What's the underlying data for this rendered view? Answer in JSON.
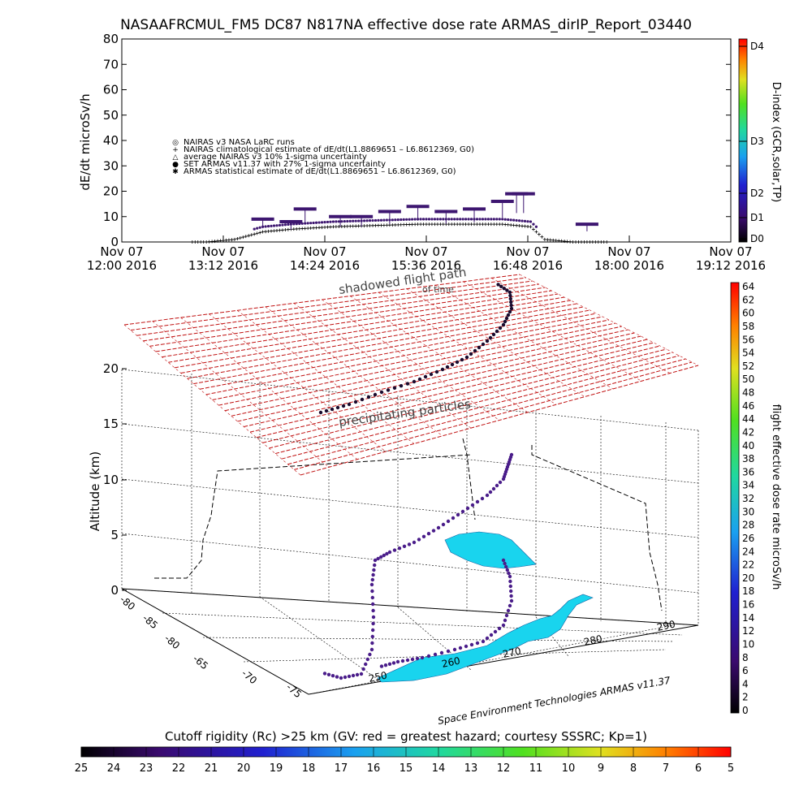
{
  "title": "NASAAFRCMUL_FM5 DC87 N817NA effective dose rate ARMAS_dirIP_Report_03440",
  "top_panel": {
    "y_label": "dE/dt microSv/h",
    "y_ticks": [
      "0",
      "10",
      "20",
      "30",
      "40",
      "50",
      "60",
      "70",
      "80"
    ],
    "x_ticks": [
      {
        "date": "Nov 07",
        "time": "12:00 2016"
      },
      {
        "date": "Nov 07",
        "time": "13:12 2016"
      },
      {
        "date": "Nov 07",
        "time": "14:24 2016"
      },
      {
        "date": "Nov 07",
        "time": "15:36 2016"
      },
      {
        "date": "Nov 07",
        "time": "16:48 2016"
      },
      {
        "date": "Nov 07",
        "time": "18:00 2016"
      },
      {
        "date": "Nov 07",
        "time": "19:12 2016"
      }
    ],
    "legend": [
      {
        "symbol": "◎",
        "text": "NAIRAS v3 NASA LaRC runs"
      },
      {
        "symbol": "+",
        "text": "NAIRAS climatological estimate of dE/dt(L1.8869651 – L6.8612369, G0)"
      },
      {
        "symbol": "△",
        "text": "average NAIRAS v3 10% 1-sigma uncertainty"
      },
      {
        "symbol": "●",
        "text": "SET ARMAS v11.37 with 27% 1-sigma uncertainty"
      },
      {
        "symbol": "✱",
        "text": "ARMAS statistical estimate of dE/dt(L1.8869651 – L6.8612369, G0)"
      }
    ],
    "dindex_label": "D-index (GCR,solar,TP)",
    "dindex_ticks": [
      "D0",
      "D1",
      "D2",
      "D3",
      "D4"
    ],
    "symbol_color": "#3d1670"
  },
  "chart_data": [
    {
      "type": "scatter",
      "title": "NASAAFRCMUL_FM5 DC87 N817NA effective dose rate ARMAS_dirIP_Report_03440",
      "ylabel": "dE/dt microSv/h",
      "ylim": [
        0,
        80
      ],
      "xlim": [
        "12:00",
        "19:12"
      ],
      "series": [
        {
          "name": "NAIRAS climatological estimate of dE/dt(L1.8869651 – L6.8612369, G0)",
          "x": [
            "12:30",
            "13:00",
            "13:20",
            "13:40",
            "14:00",
            "14:30",
            "15:00",
            "15:30",
            "16:00",
            "16:30",
            "16:50",
            "17:00",
            "17:20",
            "17:40",
            "18:20"
          ],
          "y": [
            0,
            0,
            1,
            4,
            5,
            6,
            6.5,
            7,
            7,
            7,
            6,
            1,
            0,
            0,
            0
          ]
        },
        {
          "name": "SET ARMAS v11.37 with 27% 1-sigma uncertainty",
          "x": [
            "13:40",
            "14:00",
            "14:10",
            "14:35",
            "14:50",
            "15:10",
            "15:30",
            "15:50",
            "16:10",
            "16:30",
            "16:40",
            "16:45",
            "17:30"
          ],
          "y": [
            9,
            8,
            13,
            10,
            10,
            12,
            14,
            12,
            13,
            16,
            19,
            19,
            7
          ]
        }
      ]
    },
    {
      "type": "scatter",
      "subtype": "3d-flight-track",
      "zlabel": "Altitude (km)",
      "zlim": [
        0,
        20
      ],
      "z_ticks": [
        "0",
        "5",
        "10",
        "15",
        "20"
      ],
      "lat_ticks": [
        "-80",
        "-85",
        "-80",
        "-65",
        "-70",
        "-75"
      ],
      "lon_ticks": [
        "250",
        "260",
        "270",
        "280",
        "290"
      ],
      "annotations": [
        "shadowed flight path",
        "of time",
        "precipitating particles"
      ],
      "credit": "Space Environment Technologies ARMAS v11.37"
    }
  ],
  "right_colorbar": {
    "label": "flight effective dose rate microSv/h",
    "ticks": [
      "0",
      "2",
      "4",
      "6",
      "8",
      "10",
      "12",
      "14",
      "16",
      "18",
      "20",
      "22",
      "24",
      "26",
      "28",
      "30",
      "32",
      "34",
      "36",
      "38",
      "40",
      "42",
      "44",
      "46",
      "48",
      "50",
      "52",
      "54",
      "56",
      "58",
      "60",
      "62",
      "64"
    ]
  },
  "bottom_colorbar": {
    "label": "Cutoff rigidity (Rc) >25 km (GV: red = greatest hazard; courtesy SSSRC; Kp=1)",
    "ticks": [
      "25",
      "24",
      "23",
      "22",
      "21",
      "20",
      "19",
      "18",
      "17",
      "16",
      "15",
      "14",
      "13",
      "12",
      "11",
      "10",
      "9",
      "8",
      "7",
      "6",
      "5"
    ]
  },
  "colors": {
    "grid_red": "#c01010",
    "land": "#19d4ee",
    "track_dark": "#1a0b2e",
    "track_purple": "#4a1d8a"
  }
}
